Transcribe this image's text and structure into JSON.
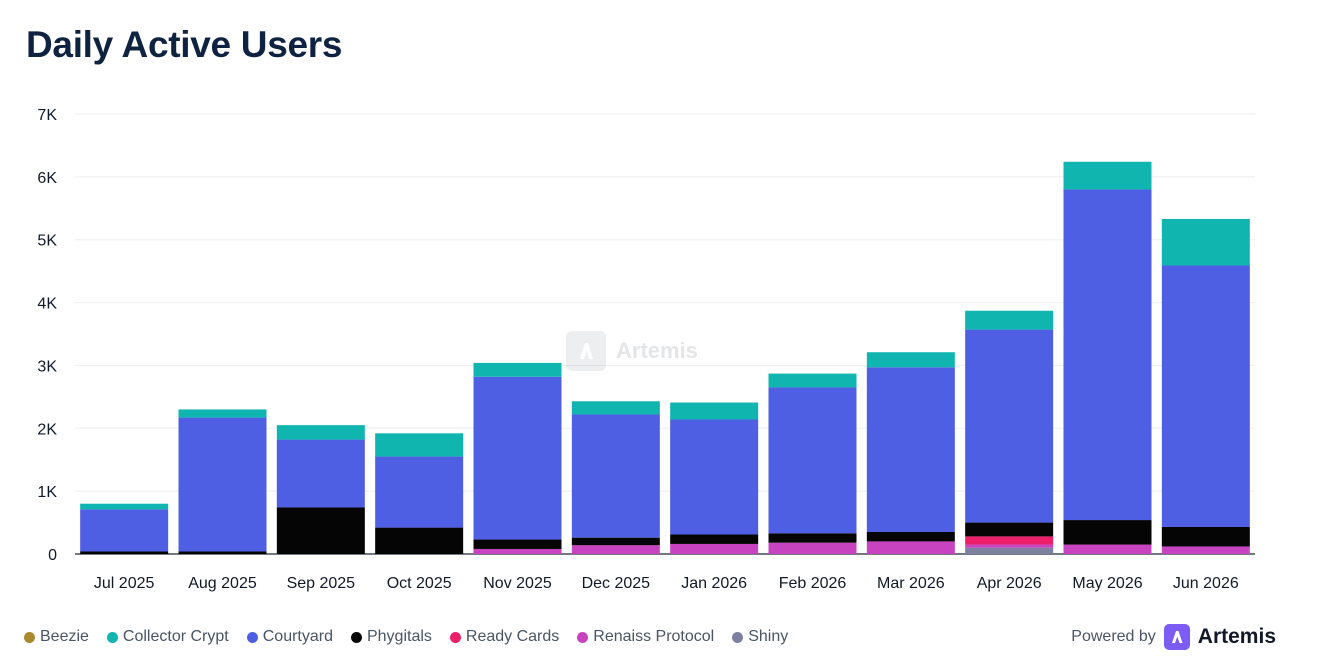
{
  "title": "Daily Active Users",
  "powered_by": "Powered by",
  "brand": "Artemis",
  "watermark": "Artemis",
  "chart_data": {
    "type": "bar",
    "stacked": true,
    "title": "Daily Active Users",
    "xlabel": "",
    "ylabel": "",
    "ylim": [
      0,
      7000
    ],
    "yticks": [
      0,
      1000,
      2000,
      3000,
      4000,
      5000,
      6000,
      7000
    ],
    "ytick_labels": [
      "0",
      "1K",
      "2K",
      "3K",
      "4K",
      "5K",
      "6K",
      "7K"
    ],
    "grid": true,
    "legend_position": "bottom-left",
    "categories": [
      "Jul 2025",
      "Aug 2025",
      "Sep 2025",
      "Oct 2025",
      "Nov 2025",
      "Dec 2025",
      "Jan 2026",
      "Feb 2026",
      "Mar 2026",
      "Apr 2026",
      "May 2026",
      "Jun 2026"
    ],
    "series": [
      {
        "name": "Beezie",
        "color": "#a98a2e",
        "values": [
          0,
          0,
          0,
          0,
          0,
          0,
          0,
          0,
          0,
          0,
          0,
          0
        ]
      },
      {
        "name": "Shiny",
        "color": "#7d809e",
        "values": [
          0,
          0,
          0,
          0,
          0,
          0,
          0,
          0,
          0,
          100,
          0,
          0
        ]
      },
      {
        "name": "Renaiss Protocol",
        "color": "#c843c0",
        "values": [
          0,
          0,
          0,
          0,
          80,
          140,
          160,
          180,
          200,
          50,
          150,
          120
        ]
      },
      {
        "name": "Ready Cards",
        "color": "#ec1f6b",
        "values": [
          0,
          0,
          0,
          0,
          0,
          0,
          0,
          0,
          0,
          130,
          0,
          0
        ]
      },
      {
        "name": "Phygitals",
        "color": "#050505",
        "values": [
          40,
          40,
          740,
          420,
          150,
          120,
          150,
          150,
          150,
          220,
          390,
          310
        ]
      },
      {
        "name": "Courtyard",
        "color": "#4f5fe3",
        "values": [
          670,
          2130,
          1080,
          1130,
          2590,
          1960,
          1830,
          2320,
          2620,
          3070,
          5260,
          4160
        ]
      },
      {
        "name": "Collector Crypt",
        "color": "#10b5b0",
        "values": [
          90,
          130,
          230,
          370,
          220,
          210,
          270,
          220,
          240,
          300,
          440,
          740
        ]
      }
    ],
    "legend_order": [
      "Beezie",
      "Collector Crypt",
      "Courtyard",
      "Phygitals",
      "Ready Cards",
      "Renaiss Protocol",
      "Shiny"
    ]
  }
}
